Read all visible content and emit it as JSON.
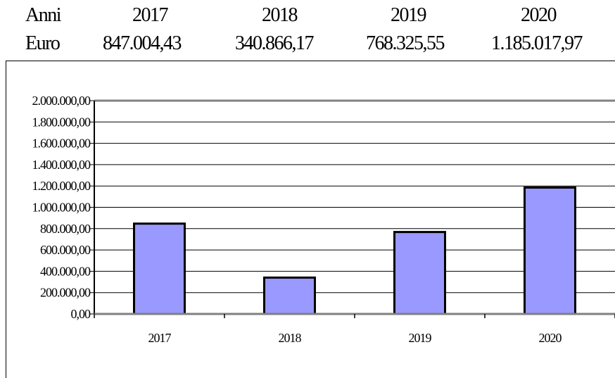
{
  "table": {
    "header_label": "Anni",
    "value_label": "Euro",
    "years": [
      "2017",
      "2018",
      "2019",
      "2020"
    ],
    "amounts": [
      "847.004,43",
      "340.866,17",
      "768.325,55",
      "1.185.017,97"
    ]
  },
  "chart_data": {
    "type": "bar",
    "categories": [
      "2017",
      "2018",
      "2019",
      "2020"
    ],
    "values": [
      847004.43,
      340866.17,
      768325.55,
      1185017.97
    ],
    "ylim": [
      0,
      2000000
    ],
    "ytick_labels": [
      "0,00",
      "200.000,00",
      "400.000,00",
      "600.000,00",
      "800.000,00",
      "1.000.000,00",
      "1.200.000,00",
      "1.400.000,00",
      "1.600.000,00",
      "1.800.000,00",
      "2.000.000,00"
    ],
    "title": "",
    "xlabel": "",
    "ylabel": "",
    "grid": true,
    "legend": "none",
    "bar_color": "#9999ff",
    "bar_edge_color": "#000000",
    "grid_color": "#000000",
    "plot_border_color": "#808080"
  }
}
